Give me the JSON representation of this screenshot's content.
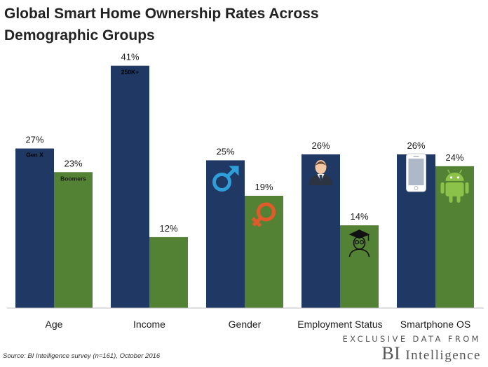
{
  "title": "Global Smart Home Ownership Rates Across Demographic Groups",
  "source": "Source: BI Intelligence survey (n=161), October 2016",
  "brand": {
    "tagline": "EXCLUSIVE DATA FROM",
    "name_initials": "BI",
    "name_word": "Intelligence"
  },
  "colors": {
    "primary": "#1f3864",
    "secondary": "#548235",
    "gender_icon_male": "#2e9fd8",
    "gender_icon_female": "#e05a2b",
    "axis": "#bfbfbf"
  },
  "chart_data": {
    "type": "bar",
    "title": "Global Smart Home Ownership Rates Across Demographic Groups",
    "categories": [
      "Age",
      "Income",
      "Gender",
      "Employment Status",
      "Smartphone OS"
    ],
    "series": [
      {
        "values": [
          27,
          41,
          25,
          26,
          26
        ]
      },
      {
        "values": [
          23,
          12,
          19,
          14,
          24
        ]
      }
    ],
    "value_labels": [
      [
        "27%",
        "41%",
        "25%",
        "26%",
        "26%"
      ],
      [
        "23%",
        "12%",
        "19%",
        "14%",
        "24%"
      ]
    ],
    "bar_annotations": [
      [
        "Gen X",
        "250K+",
        "",
        "",
        ""
      ],
      [
        "Boomers",
        "",
        "",
        "",
        ""
      ]
    ],
    "bar_icons": [
      [
        "",
        "",
        "male-symbol-icon",
        "business-person-icon",
        "iphone-icon"
      ],
      [
        "",
        "",
        "female-symbol-icon",
        "graduate-student-icon",
        "android-robot-icon"
      ]
    ],
    "ylim": [
      0,
      45
    ],
    "grid": false,
    "legend": "none",
    "xlabel": "",
    "ylabel": ""
  }
}
